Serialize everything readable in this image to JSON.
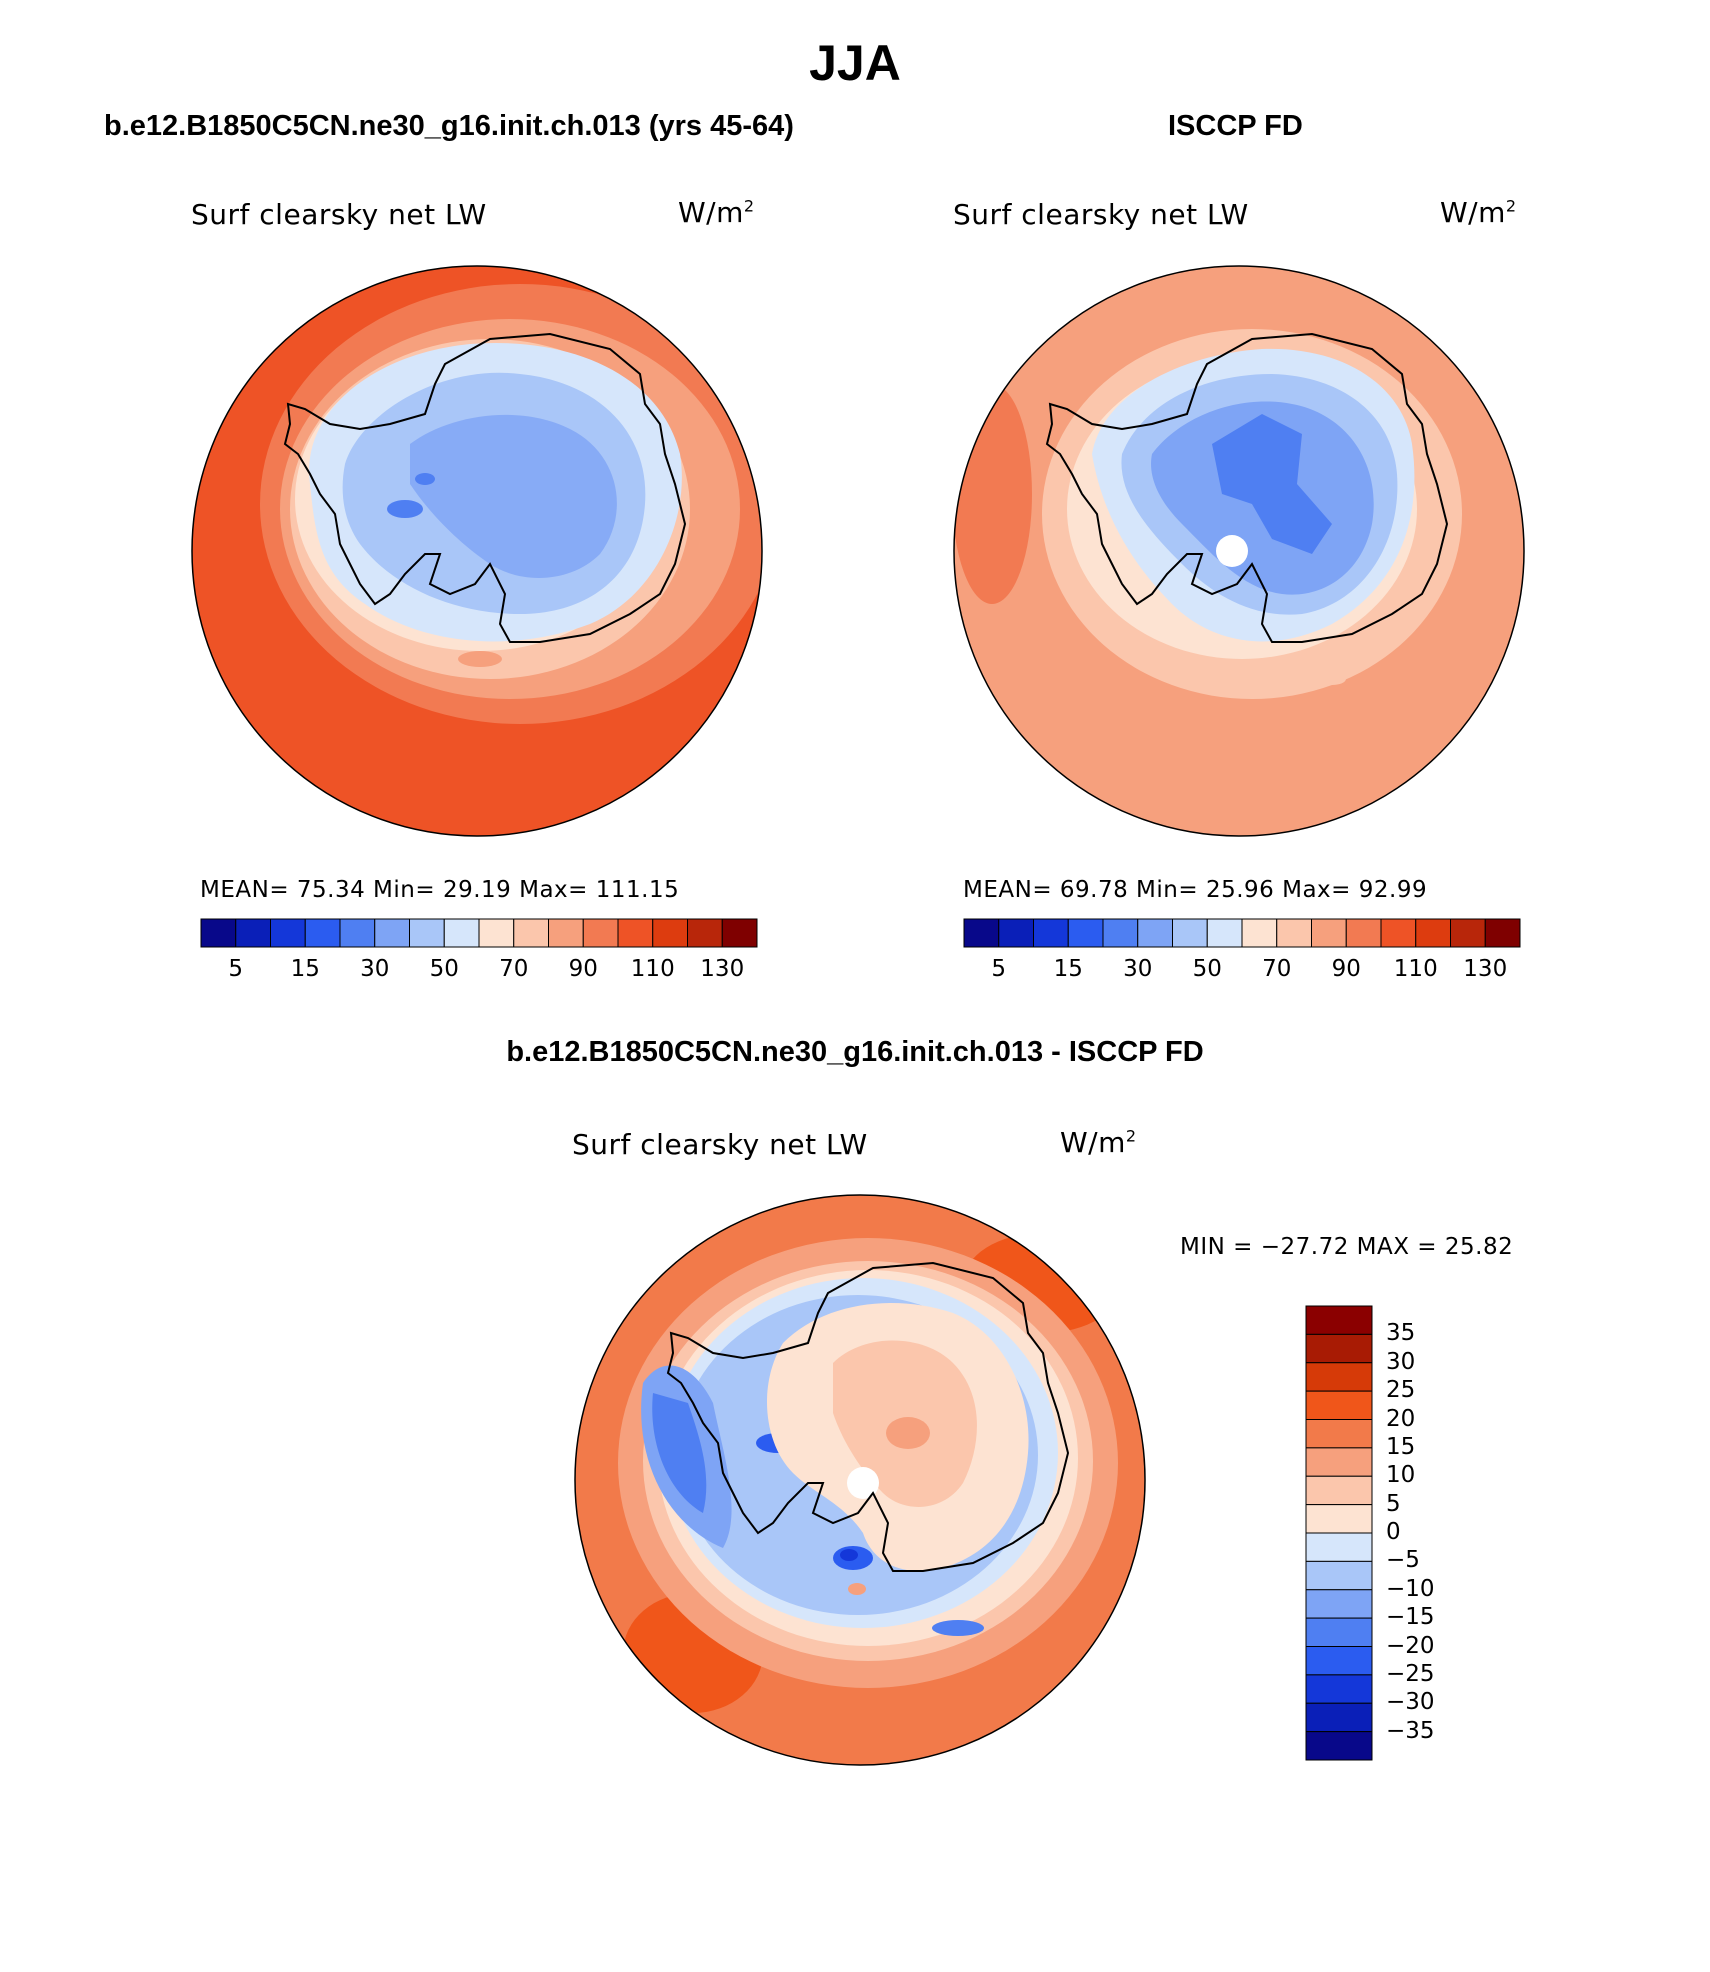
{
  "figure": {
    "title": "JJA"
  },
  "panels": [
    {
      "header": "b.e12.B1850C5CN.ne30_g16.init.ch.013 (yrs 45-64)",
      "variable": "Surf clearsky net LW",
      "units_base": "W/m",
      "units_exp": "2",
      "stats_text": "MEAN=   75.34   Min=   29.19   Max=  111.15",
      "stats": {
        "mean": 75.34,
        "min": 29.19,
        "max": 111.15
      },
      "colorbar_labels": [
        "5",
        "15",
        "30",
        "50",
        "70",
        "90",
        "110",
        "130"
      ]
    },
    {
      "header": "ISCCP FD",
      "variable": "Surf clearsky net LW",
      "units_base": "W/m",
      "units_exp": "2",
      "stats_text": "MEAN=   69.78   Min=   25.96   Max=   92.99",
      "stats": {
        "mean": 69.78,
        "min": 25.96,
        "max": 92.99
      },
      "colorbar_labels": [
        "5",
        "15",
        "30",
        "50",
        "70",
        "90",
        "110",
        "130"
      ]
    },
    {
      "header": "b.e12.B1850C5CN.ne30_g16.init.ch.013 - ISCCP FD",
      "variable": "Surf clearsky net LW",
      "units_base": "W/m",
      "units_exp": "2",
      "stats_text": "MIN = −27.72  MAX =   25.82",
      "stats": {
        "min": -27.72,
        "max": 25.82
      },
      "colorbar_labels": [
        "35",
        "30",
        "25",
        "20",
        "15",
        "10",
        "5",
        "0",
        "−5",
        "−10",
        "−15",
        "−20",
        "−25",
        "−30",
        "−35"
      ]
    }
  ],
  "palettes": {
    "field": [
      "#08088a",
      "#0a1fb8",
      "#1437d9",
      "#2b5cf0",
      "#4f7ff2",
      "#7ea4f5",
      "#a9c6f8",
      "#d6e6fb",
      "#fde3d2",
      "#fbc6ac",
      "#f6a07d",
      "#f27a52",
      "#ee5326",
      "#dd3c0f",
      "#b8260a",
      "#7f0000"
    ],
    "diff": [
      "#8b0000",
      "#a81b04",
      "#d63a08",
      "#f0561a",
      "#f27a4a",
      "#f6a07d",
      "#fbc6ac",
      "#fde3d2",
      "#d6e6fb",
      "#a9c6f8",
      "#7ea4f5",
      "#4f7ff2",
      "#2b5cf0",
      "#1437d9",
      "#0a1fb8",
      "#08088a"
    ]
  }
}
